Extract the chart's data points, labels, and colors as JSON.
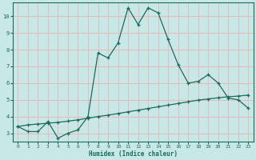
{
  "xlabel": "Humidex (Indice chaleur)",
  "background_color": "#c8e8e8",
  "grid_color": "#e8b8b8",
  "line_color": "#1a6b5a",
  "spine_color": "#1a6b5a",
  "xlim": [
    -0.5,
    23.5
  ],
  "ylim": [
    2.5,
    10.8
  ],
  "xticks": [
    0,
    1,
    2,
    3,
    4,
    5,
    6,
    7,
    8,
    9,
    10,
    11,
    12,
    13,
    14,
    15,
    16,
    17,
    18,
    19,
    20,
    21,
    22,
    23
  ],
  "yticks": [
    3,
    4,
    5,
    6,
    7,
    8,
    9,
    10
  ],
  "line1_x": [
    0,
    1,
    2,
    3,
    4,
    5,
    6,
    7,
    8,
    9,
    10,
    11,
    12,
    13,
    14,
    15,
    16,
    17,
    18,
    19,
    20,
    21,
    22,
    23
  ],
  "line1_y": [
    3.4,
    3.1,
    3.1,
    3.7,
    2.7,
    3.0,
    3.2,
    4.0,
    7.8,
    7.5,
    8.4,
    10.5,
    9.5,
    10.5,
    10.2,
    8.6,
    7.1,
    6.0,
    6.1,
    6.5,
    6.0,
    5.1,
    5.0,
    4.5
  ],
  "line2_x": [
    0,
    1,
    2,
    3,
    4,
    5,
    6,
    7,
    8,
    9,
    10,
    11,
    12,
    13,
    14,
    15,
    16,
    17,
    18,
    19,
    20,
    21,
    22,
    23
  ],
  "line2_y": [
    3.4,
    3.5,
    3.55,
    3.6,
    3.65,
    3.72,
    3.8,
    3.9,
    4.0,
    4.08,
    4.18,
    4.28,
    4.38,
    4.48,
    4.58,
    4.68,
    4.78,
    4.88,
    4.98,
    5.05,
    5.12,
    5.18,
    5.22,
    5.28
  ]
}
